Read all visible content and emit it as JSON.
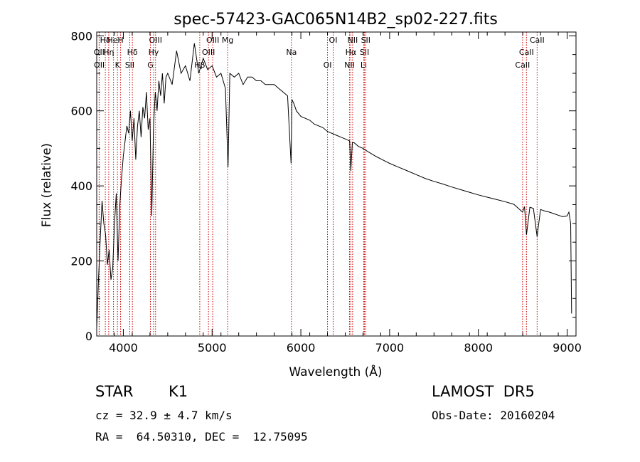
{
  "chart_data": {
    "type": "line",
    "title": "spec-57423-GAC065N14B2_sp02-227.fits",
    "xlabel": "Wavelength (Å)",
    "ylabel": "Flux (relative)",
    "xlim": [
      3700,
      9100
    ],
    "ylim": [
      0,
      810
    ],
    "x_ticks": [
      4000,
      5000,
      6000,
      7000,
      8000,
      9000
    ],
    "y_ticks": [
      0,
      200,
      400,
      600,
      800
    ],
    "grid": false,
    "line_color": "#000000",
    "marker_color": "#cc0000",
    "series": [
      {
        "x": [
          3700,
          3720,
          3740,
          3760,
          3780,
          3800,
          3820,
          3840,
          3860,
          3880,
          3900,
          3920,
          3940,
          3960,
          3980,
          4000,
          4020,
          4040,
          4060,
          4080,
          4100,
          4120,
          4140,
          4160,
          4180,
          4200,
          4220,
          4240,
          4260,
          4280,
          4300,
          4320,
          4340,
          4360,
          4380,
          4400,
          4420,
          4440,
          4460,
          4480,
          4500,
          4550,
          4600,
          4650,
          4700,
          4750,
          4800,
          4850,
          4900,
          4950,
          5000,
          5050,
          5100,
          5150,
          5180,
          5200,
          5250,
          5300,
          5350,
          5400,
          5450,
          5500,
          5550,
          5600,
          5650,
          5700,
          5750,
          5800,
          5850,
          5890,
          5900,
          5920,
          5950,
          6000,
          6050,
          6100,
          6150,
          6200,
          6250,
          6300,
          6350,
          6400,
          6450,
          6500,
          6550,
          6563,
          6580,
          6600,
          6650,
          6700,
          6750,
          6800,
          6850,
          6900,
          6950,
          7000,
          7100,
          7200,
          7300,
          7400,
          7500,
          7600,
          7700,
          7800,
          7900,
          8000,
          8100,
          8200,
          8300,
          8400,
          8498,
          8520,
          8542,
          8580,
          8620,
          8662,
          8700,
          8750,
          8800,
          8850,
          8900,
          8950,
          9000,
          9020,
          9040,
          9050
        ],
        "y": [
          20,
          150,
          260,
          360,
          300,
          270,
          190,
          230,
          150,
          180,
          300,
          380,
          200,
          350,
          420,
          480,
          520,
          560,
          540,
          600,
          520,
          580,
          470,
          560,
          600,
          530,
          610,
          580,
          650,
          550,
          580,
          320,
          560,
          650,
          600,
          680,
          640,
          700,
          620,
          690,
          700,
          670,
          760,
          700,
          720,
          680,
          780,
          700,
          740,
          710,
          720,
          690,
          700,
          660,
          450,
          700,
          690,
          700,
          670,
          690,
          690,
          680,
          680,
          670,
          670,
          670,
          660,
          650,
          640,
          460,
          630,
          620,
          600,
          585,
          580,
          575,
          565,
          560,
          555,
          545,
          540,
          535,
          530,
          525,
          520,
          440,
          515,
          515,
          505,
          500,
          492,
          485,
          478,
          472,
          466,
          460,
          450,
          440,
          430,
          420,
          412,
          405,
          397,
          390,
          383,
          376,
          370,
          364,
          358,
          351,
          330,
          345,
          270,
          343,
          340,
          265,
          337,
          333,
          330,
          326,
          322,
          318,
          320,
          330,
          300,
          60
        ]
      }
    ],
    "lines": [
      {
        "label": "Hδ",
        "x": 3797
      },
      {
        "label": "OII",
        "x": 3727
      },
      {
        "label": "OII",
        "x": 3729
      },
      {
        "label": "HeI",
        "x": 3889
      },
      {
        "label": "Hη",
        "x": 3835
      },
      {
        "label": "K",
        "x": 3934
      },
      {
        "label": "H",
        "x": 3969
      },
      {
        "label": "Hδ",
        "x": 4102
      },
      {
        "label": "SII",
        "x": 4072
      },
      {
        "label": "OIII",
        "x": 4363
      },
      {
        "label": "Hγ",
        "x": 4341
      },
      {
        "label": "G",
        "x": 4305
      },
      {
        "label": "OIII",
        "x": 5007
      },
      {
        "label": "OIII",
        "x": 4959
      },
      {
        "label": "Hβ",
        "x": 4861
      },
      {
        "label": "Mg",
        "x": 5175
      },
      {
        "label": "Na",
        "x": 5894
      },
      {
        "label": "OI",
        "x": 6300
      },
      {
        "label": "OI",
        "x": 6364
      },
      {
        "label": "Hα",
        "x": 6563
      },
      {
        "label": "NII",
        "x": 6548
      },
      {
        "label": "NII",
        "x": 6583
      },
      {
        "label": "SII",
        "x": 6717
      },
      {
        "label": "Li",
        "x": 6708
      },
      {
        "label": "SII",
        "x": 6731
      },
      {
        "label": "CaII",
        "x": 8542
      },
      {
        "label": "CaII",
        "x": 8498
      },
      {
        "label": "CaII",
        "x": 8662
      }
    ]
  },
  "info": {
    "object_type": "STAR",
    "subclass": "K1",
    "survey": "LAMOST  DR5",
    "redshift": "cz = 32.9 ± 4.7 km/s",
    "obs_date": "Obs-Date: 20160204",
    "coords": "RA =  64.50310, DEC =  12.75095"
  }
}
